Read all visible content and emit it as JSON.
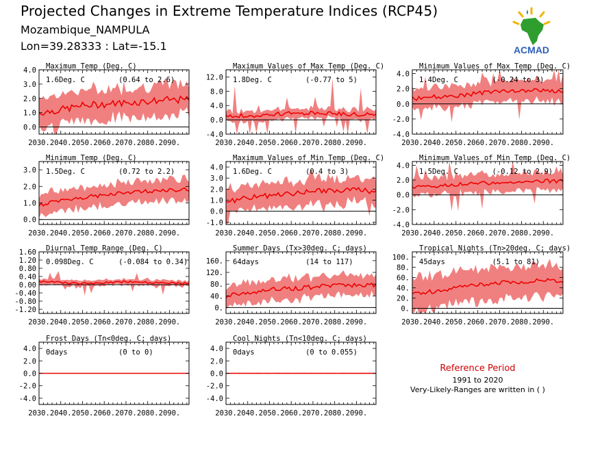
{
  "header": {
    "title": "Projected Changes in Extreme Temperature Indices (RCP45)",
    "location": "Mozambique_NAMPULA",
    "coords": "Lon=39.28333 : Lat=-15.1"
  },
  "logo": {
    "text": "ACMAD",
    "icon": "africa-map-icon"
  },
  "reference": {
    "heading": "Reference Period",
    "years": "1991 to 2020",
    "note": "Very-Likely-Ranges are written in ( )",
    "heading_color": "#cc0000"
  },
  "colors": {
    "band": "#f08080",
    "line": "#ee0000",
    "zero": "#000000"
  },
  "chart_data": [
    {
      "type": "area",
      "title": "Maximum Temp (Deg. C)",
      "value_label": "1.6Deg. C",
      "range_label": "(0.64 to 2.6)",
      "ylim": [
        -0.5,
        4.0
      ],
      "yticks": [
        0.0,
        1.0,
        2.0,
        3.0,
        4.0
      ],
      "ytick_labels": [
        "0.0",
        "1.0",
        "2.0",
        "3.0",
        "4.0"
      ],
      "x_range": [
        2030,
        2099
      ],
      "xticks": [
        "2030.",
        "2040.",
        "2050.",
        "2060.",
        "2070.",
        "2080.",
        "2090."
      ],
      "mean": {
        "years": [
          2030,
          2040,
          2050,
          2060,
          2070,
          2080,
          2090,
          2099
        ],
        "values": [
          1.0,
          1.2,
          1.5,
          1.6,
          1.7,
          1.8,
          1.9,
          1.9
        ]
      },
      "band_half": 1.2,
      "noise": 0.25,
      "spike": 0
    },
    {
      "type": "area",
      "title": "Maximum Values of Max Temp (Deg. C)",
      "value_label": "1.8Deg. C",
      "range_label": "(-0.77 to 5)",
      "ylim": [
        -4.0,
        14.0
      ],
      "yticks": [
        -4.0,
        0.0,
        4.0,
        8.0,
        12.0
      ],
      "ytick_labels": [
        "-4.0",
        "0.0",
        "4.0",
        "8.0",
        "12.0"
      ],
      "x_range": [
        2030,
        2099
      ],
      "xticks": [
        "2030.",
        "2040.",
        "2050.",
        "2060.",
        "2070.",
        "2080.",
        "2090."
      ],
      "mean": {
        "years": [
          2030,
          2040,
          2050,
          2060,
          2070,
          2080,
          2090,
          2099
        ],
        "values": [
          1.0,
          1.2,
          1.5,
          1.8,
          1.8,
          1.7,
          1.6,
          1.5
        ]
      },
      "band_half": 1.5,
      "noise": 0.6,
      "spike": 9.0
    },
    {
      "type": "area",
      "title": "Minimum Values of Max Temp (Deg. C)",
      "value_label": "1.4Deg. C",
      "range_label": "(-0.24 to 3)",
      "ylim": [
        -4.0,
        4.5
      ],
      "yticks": [
        -4.0,
        -2.0,
        0.0,
        2.0,
        4.0
      ],
      "ytick_labels": [
        "-4.0",
        "-2.0",
        "0.0",
        "2.0",
        "4.0"
      ],
      "x_range": [
        2030,
        2099
      ],
      "xticks": [
        "2030.",
        "2040.",
        "2050.",
        "2060.",
        "2070.",
        "2080.",
        "2090."
      ],
      "mean": {
        "years": [
          2030,
          2040,
          2050,
          2060,
          2070,
          2080,
          2090,
          2099
        ],
        "values": [
          0.7,
          0.9,
          1.1,
          1.4,
          1.6,
          1.7,
          1.8,
          1.6
        ]
      },
      "band_half": 1.5,
      "noise": 0.3,
      "spike": 2.5
    },
    {
      "type": "area",
      "title": "Minimum Temp (Deg. C)",
      "value_label": "1.5Deg. C",
      "range_label": "(0.72 to 2.2)",
      "ylim": [
        -0.3,
        3.5
      ],
      "yticks": [
        0.0,
        1.0,
        2.0,
        3.0
      ],
      "ytick_labels": [
        "0.0",
        "1.0",
        "2.0",
        "3.0"
      ],
      "x_range": [
        2030,
        2099
      ],
      "xticks": [
        "2030.",
        "2040.",
        "2050.",
        "2060.",
        "2070.",
        "2080.",
        "2090."
      ],
      "mean": {
        "years": [
          2030,
          2040,
          2050,
          2060,
          2070,
          2080,
          2090,
          2099
        ],
        "values": [
          0.9,
          1.1,
          1.3,
          1.5,
          1.6,
          1.7,
          1.8,
          1.8
        ]
      },
      "band_half": 0.7,
      "noise": 0.12,
      "spike": 0
    },
    {
      "type": "area",
      "title": "Maximum Values of Min Temp (Deg. C)",
      "value_label": "1.6Deg. C",
      "range_label": "(0.4 to 3)",
      "ylim": [
        -1.2,
        4.5
      ],
      "yticks": [
        -1.0,
        0.0,
        1.0,
        2.0,
        3.0,
        4.0
      ],
      "ytick_labels": [
        "-1.0",
        "0.0",
        "1.0",
        "2.0",
        "3.0",
        "4.0"
      ],
      "x_range": [
        2030,
        2099
      ],
      "xticks": [
        "2030.",
        "2040.",
        "2050.",
        "2060.",
        "2070.",
        "2080.",
        "2090."
      ],
      "mean": {
        "years": [
          2030,
          2040,
          2050,
          2060,
          2070,
          2080,
          2090,
          2099
        ],
        "values": [
          0.9,
          1.2,
          1.4,
          1.6,
          1.8,
          1.9,
          1.9,
          1.8
        ]
      },
      "band_half": 1.2,
      "noise": 0.25,
      "spike": 1.0
    },
    {
      "type": "area",
      "title": "Minimum Values of Min Temp (Deg. C)",
      "value_label": "1.5Deg. C",
      "range_label": "(-0.12 to 2.9)",
      "ylim": [
        -4.0,
        4.5
      ],
      "yticks": [
        -4.0,
        -2.0,
        0.0,
        2.0,
        4.0
      ],
      "ytick_labels": [
        "-4.0",
        "-2.0",
        "0.0",
        "2.0",
        "4.0"
      ],
      "x_range": [
        2030,
        2099
      ],
      "xticks": [
        "2030.",
        "2040.",
        "2050.",
        "2060.",
        "2070.",
        "2080.",
        "2090."
      ],
      "mean": {
        "years": [
          2030,
          2040,
          2050,
          2060,
          2070,
          2080,
          2090,
          2099
        ],
        "values": [
          1.0,
          1.2,
          1.4,
          1.5,
          1.7,
          1.8,
          1.9,
          1.8
        ]
      },
      "band_half": 1.3,
      "noise": 0.25,
      "spike": 3.0
    },
    {
      "type": "area",
      "title": "Diurnal Temp Range (Deg. C)",
      "value_label": "0.098Deg. C",
      "range_label": "(-0.084 to 0.34)",
      "ylim": [
        -1.4,
        1.6
      ],
      "yticks": [
        -1.2,
        -0.8,
        -0.4,
        0.0,
        0.4,
        0.8,
        1.2,
        1.6
      ],
      "ytick_labels": [
        "-1.20",
        "-0.80",
        "-0.40",
        "0.00",
        "0.40",
        "0.80",
        "1.20",
        "1.60"
      ],
      "x_range": [
        2030,
        2099
      ],
      "xticks": [
        "2030.",
        "2040.",
        "2050.",
        "2060.",
        "2070.",
        "2080.",
        "2090."
      ],
      "mean": {
        "years": [
          2030,
          2040,
          2050,
          2060,
          2070,
          2080,
          2090,
          2099
        ],
        "values": [
          0.15,
          0.1,
          0.05,
          0.1,
          0.15,
          0.1,
          0.1,
          0.05
        ]
      },
      "band_half": 0.15,
      "noise": 0.05,
      "spike": 0.5
    },
    {
      "type": "area",
      "title": "Summer Days (Tx>30deg. C; days)",
      "value_label": "64days",
      "range_label": "(14 to 117)",
      "ylim": [
        -20,
        190
      ],
      "yticks": [
        0,
        40,
        80,
        120,
        160
      ],
      "ytick_labels": [
        "0.",
        "40.",
        "80.",
        "120.",
        "160."
      ],
      "x_range": [
        2030,
        2099
      ],
      "xticks": [
        "2030.",
        "2040.",
        "2050.",
        "2060.",
        "2070.",
        "2080.",
        "2090."
      ],
      "mean": {
        "years": [
          2030,
          2040,
          2050,
          2060,
          2070,
          2080,
          2090,
          2099
        ],
        "values": [
          40,
          50,
          60,
          65,
          70,
          75,
          78,
          78
        ]
      },
      "band_half": 40,
      "noise": 8,
      "spike": 0
    },
    {
      "type": "area",
      "title": "Tropical Nights (Tn>20deg. C; days)",
      "value_label": "45days",
      "range_label": "(5.1 to 81)",
      "ylim": [
        -10,
        110
      ],
      "yticks": [
        0,
        20,
        40,
        60,
        80,
        100
      ],
      "ytick_labels": [
        "0.",
        "20.",
        "40.",
        "60.",
        "80.",
        "100."
      ],
      "x_range": [
        2030,
        2099
      ],
      "xticks": [
        "2030.",
        "2040.",
        "2050.",
        "2060.",
        "2070.",
        "2080.",
        "2090."
      ],
      "mean": {
        "years": [
          2030,
          2040,
          2050,
          2060,
          2070,
          2080,
          2090,
          2099
        ],
        "values": [
          30,
          33,
          40,
          45,
          50,
          52,
          55,
          52
        ]
      },
      "band_half": 35,
      "noise": 4,
      "spike": 0
    },
    {
      "type": "area",
      "title": "Frost Days (Tn<0deg. C; days)",
      "value_label": "0days",
      "range_label": "(0 to 0)",
      "ylim": [
        -5.0,
        5.0
      ],
      "yticks": [
        -4.0,
        -2.0,
        0.0,
        2.0,
        4.0
      ],
      "ytick_labels": [
        "-4.0",
        "-2.0",
        "0.0",
        "2.0",
        "4.0"
      ],
      "x_range": [
        2030,
        2099
      ],
      "xticks": [
        "2030.",
        "2040.",
        "2050.",
        "2060.",
        "2070.",
        "2080.",
        "2090."
      ],
      "mean": {
        "years": [
          2030,
          2099
        ],
        "values": [
          0,
          0
        ]
      },
      "band_half": 0,
      "noise": 0,
      "spike": 0
    },
    {
      "type": "area",
      "title": "Cool Nights (Tn<10deg. C; days)",
      "value_label": "0days",
      "range_label": "(0 to 0.055)",
      "ylim": [
        -5.0,
        5.0
      ],
      "yticks": [
        -4.0,
        -2.0,
        0.0,
        2.0,
        4.0
      ],
      "ytick_labels": [
        "-4.0",
        "-2.0",
        "0.0",
        "2.0",
        "4.0"
      ],
      "x_range": [
        2030,
        2099
      ],
      "xticks": [
        "2030.",
        "2040.",
        "2050.",
        "2060.",
        "2070.",
        "2080.",
        "2090."
      ],
      "mean": {
        "years": [
          2030,
          2099
        ],
        "values": [
          0,
          0
        ]
      },
      "band_half": 0.08,
      "noise": 0,
      "spike": 0
    }
  ]
}
